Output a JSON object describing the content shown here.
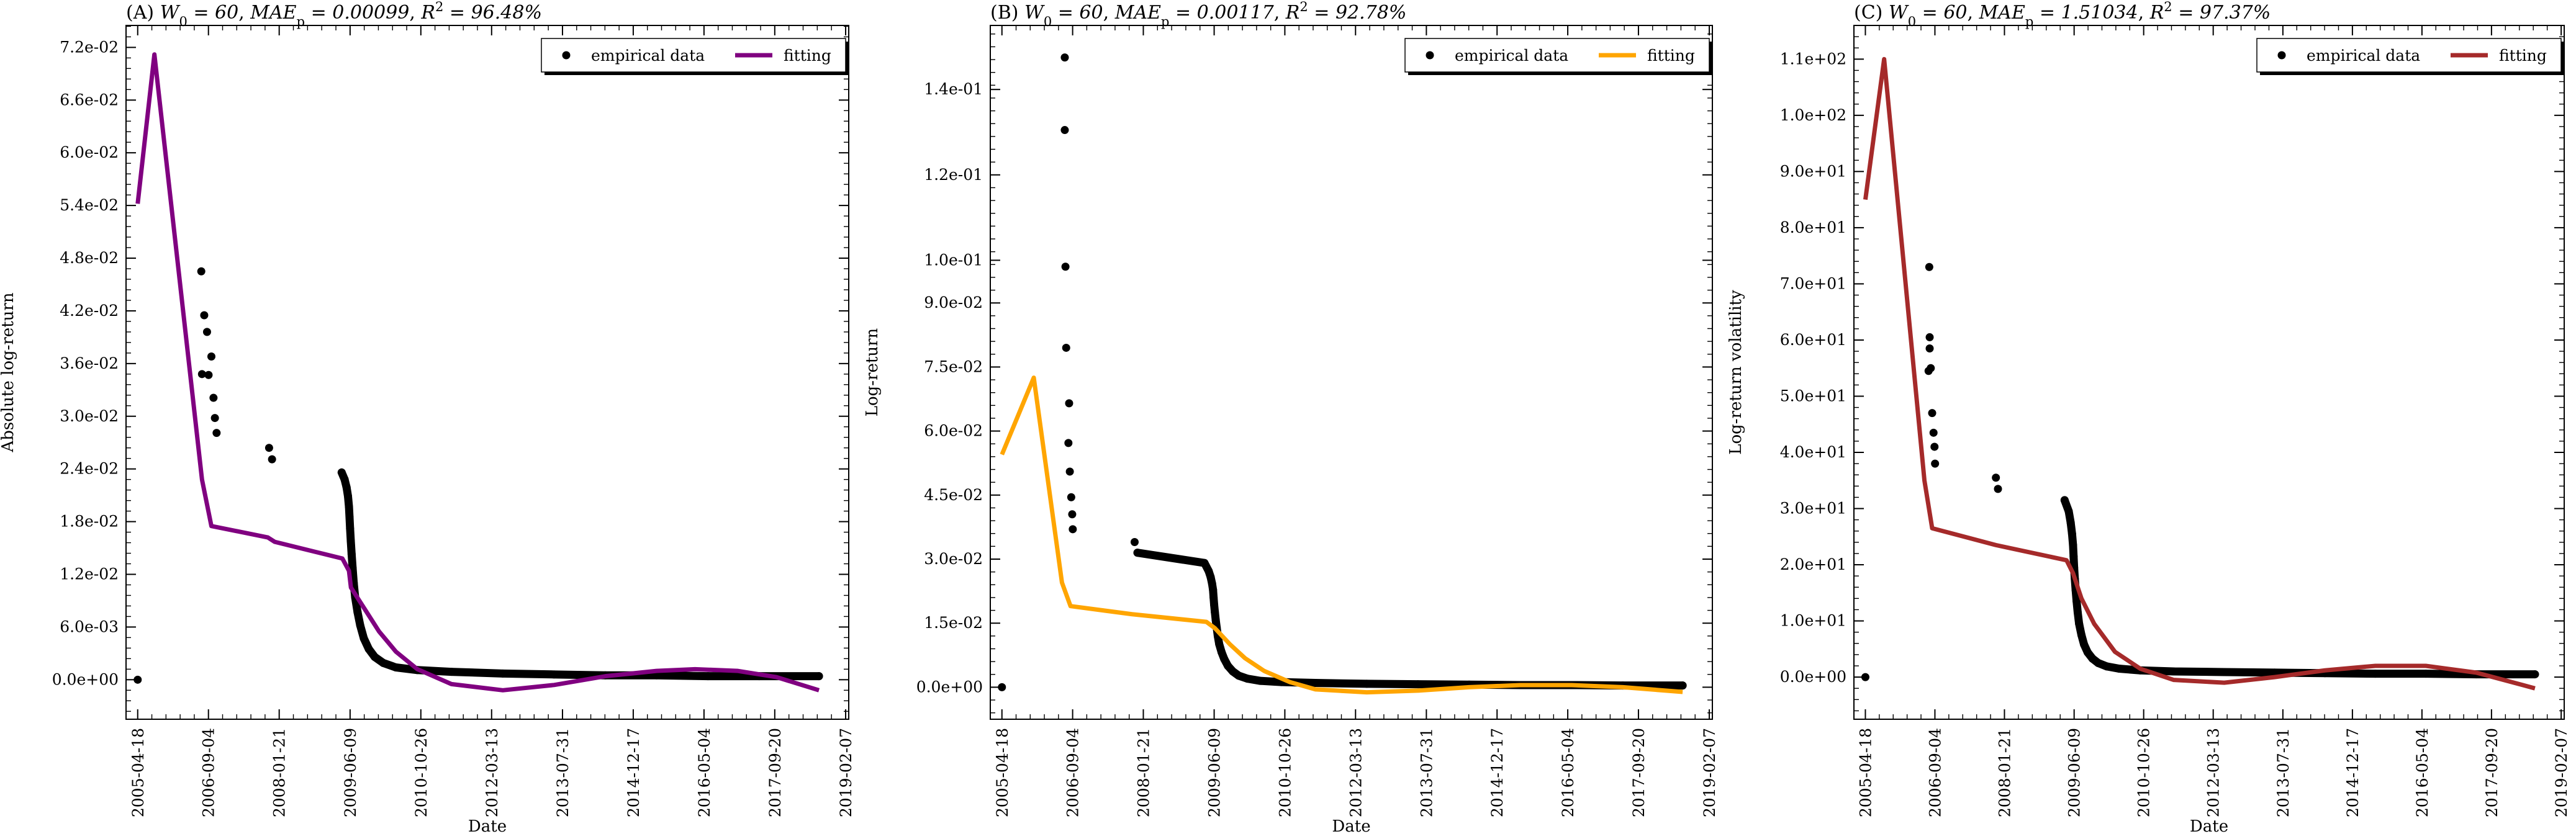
{
  "chart_data": [
    {
      "type": "line",
      "title": "(A) $W_0 = 60$, $MAE_p = 0.00099$, $R^2 = 96.48\\%$",
      "xlabel": "Date",
      "ylabel": "Absolute log-return",
      "ylim": [
        -0.0045,
        0.0745
      ],
      "yticks": [
        0.0,
        0.006,
        0.012,
        0.018,
        0.024,
        0.03,
        0.036,
        0.042,
        0.048,
        0.054,
        0.06,
        0.066,
        0.072
      ],
      "ytick_labels": [
        "0.0e+00",
        "6.0e-03",
        "1.2e-02",
        "1.8e-02",
        "2.4e-02",
        "3.0e-02",
        "3.6e-02",
        "4.2e-02",
        "4.8e-02",
        "5.4e-02",
        "6.0e-02",
        "6.6e-02",
        "7.2e-02"
      ],
      "xlim": [
        "2005-01-25",
        "2019-03-01"
      ],
      "xtick_labels": [
        "2005-04-18",
        "2006-09-04",
        "2008-01-21",
        "2009-06-09",
        "2010-10-26",
        "2012-03-13",
        "2013-07-31",
        "2014-12-17",
        "2016-05-04",
        "2017-09-20",
        "2019-02-07"
      ],
      "legend": {
        "position": "top-right",
        "entries": [
          "empirical data",
          "fitting"
        ]
      },
      "series": [
        {
          "name": "empirical data",
          "kind": "scatter",
          "color": "#000000",
          "points": [
            [
              "2005-04-18",
              0.0
            ],
            [
              "2006-07-15",
              0.0465
            ],
            [
              "2006-08-05",
              0.0415
            ],
            [
              "2006-08-25",
              0.0396
            ],
            [
              "2006-07-20",
              0.0348
            ],
            [
              "2006-09-05",
              0.0347
            ],
            [
              "2006-09-25",
              0.0368
            ],
            [
              "2006-10-10",
              0.0321
            ],
            [
              "2006-10-20",
              0.0298
            ],
            [
              "2006-11-01",
              0.0281
            ],
            [
              "2007-11-10",
              0.0264
            ],
            [
              "2007-12-01",
              0.0251
            ],
            [
              "2009-04-10",
              0.0236
            ],
            [
              "2009-05-01",
              0.0228
            ],
            [
              "2009-05-15",
              0.0219
            ],
            [
              "2009-05-25",
              0.0209
            ],
            [
              "2009-06-01",
              0.0197
            ],
            [
              "2009-06-05",
              0.0185
            ],
            [
              "2009-06-09",
              0.0172
            ],
            [
              "2009-06-14",
              0.0158
            ],
            [
              "2009-06-20",
              0.0143
            ],
            [
              "2009-06-27",
              0.0127
            ],
            [
              "2009-07-05",
              0.011
            ],
            [
              "2009-07-15",
              0.0094
            ],
            [
              "2009-08-01",
              0.0077
            ],
            [
              "2009-08-20",
              0.0062
            ],
            [
              "2009-09-15",
              0.0047
            ],
            [
              "2009-10-20",
              0.0035
            ],
            [
              "2009-12-01",
              0.0026
            ],
            [
              "2010-02-01",
              0.0019
            ],
            [
              "2010-05-01",
              0.0014
            ],
            [
              "2010-10-01",
              0.0011
            ],
            [
              "2011-06-01",
              0.0009
            ],
            [
              "2012-06-01",
              0.0007
            ],
            [
              "2013-06-01",
              0.0006
            ],
            [
              "2014-06-01",
              0.0005
            ],
            [
              "2015-06-01",
              0.0005
            ],
            [
              "2016-06-01",
              0.0004
            ],
            [
              "2017-06-01",
              0.0004
            ],
            [
              "2018-08-01",
              0.0004
            ]
          ]
        },
        {
          "name": "fitting",
          "kind": "line",
          "color": "#800080",
          "points": [
            [
              "2005-04-18",
              0.0542
            ],
            [
              "2005-08-15",
              0.0712
            ],
            [
              "2006-07-20",
              0.0228
            ],
            [
              "2006-09-25",
              0.0175
            ],
            [
              "2007-11-01",
              0.0162
            ],
            [
              "2007-12-20",
              0.0157
            ],
            [
              "2009-04-15",
              0.0138
            ],
            [
              "2009-06-01",
              0.0124
            ],
            [
              "2009-06-15",
              0.0105
            ],
            [
              "2009-10-01",
              0.0078
            ],
            [
              "2010-01-01",
              0.0055
            ],
            [
              "2010-05-01",
              0.0032
            ],
            [
              "2010-10-01",
              0.0012
            ],
            [
              "2011-06-01",
              -0.0005
            ],
            [
              "2012-06-01",
              -0.0012
            ],
            [
              "2013-06-01",
              -0.0006
            ],
            [
              "2014-06-01",
              0.0004
            ],
            [
              "2015-06-01",
              0.001
            ],
            [
              "2016-03-01",
              0.0012
            ],
            [
              "2017-01-01",
              0.001
            ],
            [
              "2017-10-01",
              0.0003
            ],
            [
              "2018-08-01",
              -0.0012
            ]
          ]
        }
      ]
    },
    {
      "type": "line",
      "title": "(B) $W_0 = 60$, $MAE_p = 0.00117$, $R^2 = 92.78\\%$",
      "xlabel": "Date",
      "ylabel": "Log-return",
      "ylim": [
        -0.0075,
        0.155
      ],
      "yticks": [
        0.0,
        0.015,
        0.03,
        0.045,
        0.06,
        0.075,
        0.09,
        0.1,
        0.12,
        0.14
      ],
      "ytick_labels": [
        "0.0e+00",
        "1.5e-02",
        "3.0e-02",
        "4.5e-02",
        "6.0e-02",
        "7.5e-02",
        "9.0e-02",
        "1.0e-01",
        "1.2e-01",
        "1.4e-01"
      ],
      "xlim": [
        "2005-01-25",
        "2019-03-01"
      ],
      "xtick_labels": [
        "2005-04-18",
        "2006-09-04",
        "2008-01-21",
        "2009-06-09",
        "2010-10-26",
        "2012-03-13",
        "2013-07-31",
        "2014-12-17",
        "2016-05-04",
        "2017-09-20",
        "2019-02-07"
      ],
      "legend": {
        "position": "top-right",
        "entries": [
          "empirical data",
          "fitting"
        ]
      },
      "series": [
        {
          "name": "empirical data",
          "kind": "scatter",
          "color": "#000000",
          "points": [
            [
              "2005-04-18",
              0.0
            ],
            [
              "2006-07-10",
              0.1475
            ],
            [
              "2006-07-10",
              0.1305
            ],
            [
              "2006-07-15",
              0.0985
            ],
            [
              "2006-07-20",
              0.0795
            ],
            [
              "2006-08-10",
              0.0665
            ],
            [
              "2006-08-05",
              0.0572
            ],
            [
              "2006-08-15",
              0.0505
            ],
            [
              "2006-08-25",
              0.0445
            ],
            [
              "2006-09-01",
              0.0405
            ],
            [
              "2006-09-05",
              0.037
            ],
            [
              "2007-11-20",
              0.034
            ],
            [
              "2007-12-10",
              0.0315
            ],
            [
              "2009-04-01",
              0.0291
            ],
            [
              "2009-05-01",
              0.0272
            ],
            [
              "2009-05-15",
              0.0258
            ],
            [
              "2009-05-25",
              0.0243
            ],
            [
              "2009-06-01",
              0.0228
            ],
            [
              "2009-06-05",
              0.021
            ],
            [
              "2009-06-09",
              0.0193
            ],
            [
              "2009-06-14",
              0.0176
            ],
            [
              "2009-06-20",
              0.0158
            ],
            [
              "2009-06-27",
              0.014
            ],
            [
              "2009-07-05",
              0.012
            ],
            [
              "2009-07-15",
              0.0101
            ],
            [
              "2009-08-01",
              0.0082
            ],
            [
              "2009-08-20",
              0.0066
            ],
            [
              "2009-09-15",
              0.005
            ],
            [
              "2009-10-20",
              0.0037
            ],
            [
              "2009-12-01",
              0.0027
            ],
            [
              "2010-02-01",
              0.002
            ],
            [
              "2010-05-01",
              0.0015
            ],
            [
              "2010-10-01",
              0.0012
            ],
            [
              "2011-06-01",
              0.001
            ],
            [
              "2012-06-01",
              0.0008
            ],
            [
              "2013-06-01",
              0.0007
            ],
            [
              "2014-06-01",
              0.0006
            ],
            [
              "2015-06-01",
              0.0005
            ],
            [
              "2016-06-01",
              0.0005
            ],
            [
              "2017-06-01",
              0.0004
            ],
            [
              "2018-08-01",
              0.0004
            ]
          ]
        },
        {
          "name": "fitting",
          "kind": "line",
          "color": "#FFA500",
          "points": [
            [
              "2005-04-18",
              0.0545
            ],
            [
              "2005-12-01",
              0.0725
            ],
            [
              "2006-06-20",
              0.0245
            ],
            [
              "2006-08-20",
              0.019
            ],
            [
              "2007-11-01",
              0.0171
            ],
            [
              "2009-04-15",
              0.0153
            ],
            [
              "2009-06-15",
              0.0138
            ],
            [
              "2009-10-01",
              0.01
            ],
            [
              "2010-01-15",
              0.0068
            ],
            [
              "2010-06-01",
              0.0038
            ],
            [
              "2010-12-01",
              0.0012
            ],
            [
              "2011-06-01",
              -0.0005
            ],
            [
              "2012-06-01",
              -0.0012
            ],
            [
              "2013-06-01",
              -0.0008
            ],
            [
              "2014-06-01",
              0.0
            ],
            [
              "2015-06-01",
              0.0005
            ],
            [
              "2016-06-01",
              0.0005
            ],
            [
              "2017-06-01",
              0.0
            ],
            [
              "2018-08-01",
              -0.0011
            ]
          ]
        }
      ]
    },
    {
      "type": "line",
      "title": "(C) $W_0 = 60$, $MAE_p = 1.51034$, $R^2 = 97.37\\%$",
      "xlabel": "Date",
      "ylabel": "Log-return volatility",
      "ylim": [
        -7.5,
        116
      ],
      "yticks": [
        0,
        10,
        20,
        30,
        40,
        50,
        60,
        70,
        80,
        90,
        100,
        110
      ],
      "ytick_labels": [
        "0.0e+00",
        "1.0e+01",
        "2.0e+01",
        "3.0e+01",
        "4.0e+01",
        "5.0e+01",
        "6.0e+01",
        "7.0e+01",
        "8.0e+01",
        "9.0e+01",
        "1.0e+02",
        "1.1e+02"
      ],
      "xlim": [
        "2005-01-25",
        "2019-03-01"
      ],
      "xtick_labels": [
        "2005-04-18",
        "2006-09-04",
        "2008-01-21",
        "2009-06-09",
        "2010-10-26",
        "2012-03-13",
        "2013-07-31",
        "2014-12-17",
        "2016-05-04",
        "2017-09-20",
        "2019-02-07"
      ],
      "legend": {
        "position": "top-right",
        "entries": [
          "empirical data",
          "fitting"
        ]
      },
      "series": [
        {
          "name": "empirical data",
          "kind": "scatter",
          "color": "#000000",
          "points": [
            [
              "2005-04-18",
              0.0
            ],
            [
              "2006-07-25",
              73.0
            ],
            [
              "2006-07-28",
              60.5
            ],
            [
              "2006-07-28",
              58.5
            ],
            [
              "2006-08-05",
              55.0
            ],
            [
              "2006-07-20",
              54.5
            ],
            [
              "2006-08-15",
              47.0
            ],
            [
              "2006-08-25",
              43.5
            ],
            [
              "2006-09-01",
              41.0
            ],
            [
              "2006-09-05",
              38.0
            ],
            [
              "2007-11-20",
              35.5
            ],
            [
              "2007-12-05",
              33.5
            ],
            [
              "2009-04-01",
              31.5
            ],
            [
              "2009-05-01",
              29.5
            ],
            [
              "2009-05-15",
              27.5
            ],
            [
              "2009-05-25",
              25.5
            ],
            [
              "2009-06-01",
              23.5
            ],
            [
              "2009-06-05",
              21.5
            ],
            [
              "2009-06-09",
              19.5
            ],
            [
              "2009-06-14",
              17.5
            ],
            [
              "2009-06-20",
              15.5
            ],
            [
              "2009-06-27",
              13.5
            ],
            [
              "2009-07-05",
              11.5
            ],
            [
              "2009-07-15",
              9.5
            ],
            [
              "2009-08-01",
              7.5
            ],
            [
              "2009-08-20",
              5.8
            ],
            [
              "2009-09-15",
              4.4
            ],
            [
              "2009-10-20",
              3.3
            ],
            [
              "2009-12-01",
              2.5
            ],
            [
              "2010-02-01",
              1.9
            ],
            [
              "2010-05-01",
              1.5
            ],
            [
              "2010-10-01",
              1.2
            ],
            [
              "2011-06-01",
              1.0
            ],
            [
              "2012-06-01",
              0.9
            ],
            [
              "2013-06-01",
              0.8
            ],
            [
              "2014-06-01",
              0.7
            ],
            [
              "2015-06-01",
              0.6
            ],
            [
              "2016-06-01",
              0.6
            ],
            [
              "2017-06-01",
              0.5
            ],
            [
              "2018-08-01",
              0.5
            ]
          ]
        },
        {
          "name": "fitting",
          "kind": "line",
          "color": "#A52A2A",
          "points": [
            [
              "2005-04-18",
              85.0
            ],
            [
              "2005-09-01",
              110.0
            ],
            [
              "2006-06-20",
              35.0
            ],
            [
              "2006-08-15",
              26.5
            ],
            [
              "2007-11-20",
              23.5
            ],
            [
              "2009-04-15",
              20.8
            ],
            [
              "2009-06-01",
              18.5
            ],
            [
              "2009-08-01",
              14.0
            ],
            [
              "2009-11-01",
              9.5
            ],
            [
              "2010-04-01",
              4.5
            ],
            [
              "2010-10-01",
              1.5
            ],
            [
              "2011-06-01",
              -0.5
            ],
            [
              "2012-06-01",
              -1.0
            ],
            [
              "2013-06-01",
              0.0
            ],
            [
              "2014-06-01",
              1.2
            ],
            [
              "2015-06-01",
              2.0
            ],
            [
              "2016-06-01",
              2.0
            ],
            [
              "2017-06-01",
              0.8
            ],
            [
              "2018-08-01",
              -2.0
            ]
          ]
        }
      ]
    }
  ]
}
